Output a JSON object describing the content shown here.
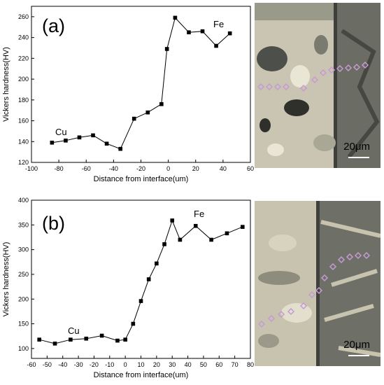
{
  "chart_data": [
    {
      "type": "line",
      "panel_label": "(a)",
      "xlabel": "Distance from interface(um)",
      "ylabel": "Vickers hardness(HV)",
      "xlim": [
        -100,
        60
      ],
      "ylim": [
        120,
        270
      ],
      "xticks": [
        -100,
        -80,
        -60,
        -40,
        -20,
        0,
        20,
        40,
        60
      ],
      "yticks": [
        120,
        140,
        160,
        180,
        200,
        220,
        240,
        260
      ],
      "annotations": [
        "Cu",
        "Fe"
      ],
      "series": [
        {
          "x": [
            -85,
            -75,
            -65,
            -55,
            -45,
            -35,
            -25,
            -15,
            -5,
            -1,
            5,
            15,
            25,
            35,
            45
          ],
          "y": [
            139,
            141,
            144,
            146,
            138,
            133,
            162,
            168,
            176,
            229,
            259,
            245,
            246,
            232,
            244
          ]
        }
      ]
    },
    {
      "type": "line",
      "panel_label": "(b)",
      "xlabel": "Distance from interface(um)",
      "ylabel": "Vickers hardness(HV)",
      "xlim": [
        -60,
        80
      ],
      "ylim": [
        80,
        400
      ],
      "xticks": [
        -60,
        -50,
        -40,
        -30,
        -20,
        -10,
        0,
        10,
        20,
        30,
        40,
        50,
        60,
        70,
        80
      ],
      "yticks": [
        100,
        150,
        200,
        250,
        300,
        350,
        400
      ],
      "annotations": [
        "Cu",
        "Fe"
      ],
      "series": [
        {
          "x": [
            -55,
            -45,
            -35,
            -25,
            -15,
            -5,
            0,
            5,
            10,
            15,
            20,
            25,
            30,
            35,
            45,
            55,
            65,
            75
          ],
          "y": [
            118,
            110,
            118,
            120,
            126,
            116,
            118,
            150,
            196,
            240,
            272,
            311,
            359,
            320,
            348,
            320,
            333,
            346
          ]
        }
      ]
    }
  ],
  "micrographs": [
    {
      "scale_label": "20μm"
    },
    {
      "scale_label": "20μm"
    }
  ]
}
